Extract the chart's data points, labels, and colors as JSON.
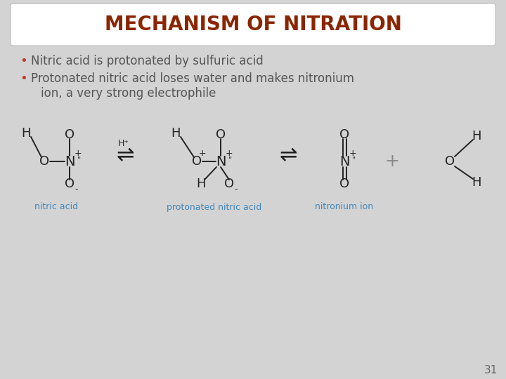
{
  "title": "MECHANISM OF NITRATION",
  "title_color": "#8B2500",
  "title_bg": "#FFFFFF",
  "body_bg": "#D3D3D3",
  "bullet1": "Nitric acid is protonated by sulfuric acid",
  "bullet2a": "Protonated nitric acid loses water and makes nitronium",
  "bullet2b": "ion, a very strong electrophile",
  "bullet_color": "#555555",
  "bullet_dot_color": "#C0392B",
  "label1": "nitric acid",
  "label2": "protonated nitric acid",
  "label3": "nitronium ion",
  "label_color": "#4488BB",
  "page_num": "31",
  "line_color": "#222222"
}
